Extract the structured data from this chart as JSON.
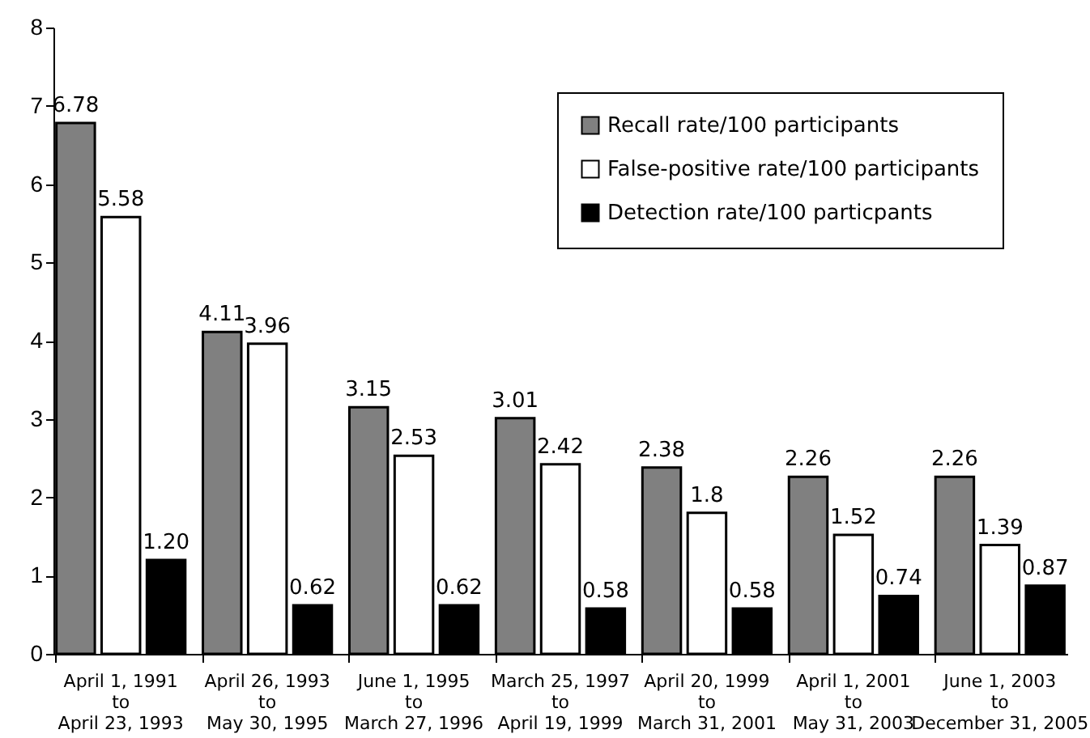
{
  "chart_data": {
    "type": "bar",
    "categories": [
      "April 1, 1991\nto\nApril 23, 1993",
      "April 26, 1993\nto\nMay 30, 1995",
      "June 1, 1995\nto\nMarch 27, 1996",
      "March 25, 1997\nto\nApril 19, 1999",
      "April 20, 1999\nto\nMarch 31, 2001",
      "April 1, 2001\nto\nMay 31, 2003",
      "June 1, 2003\nto\nDecember 31, 2005"
    ],
    "series": [
      {
        "name": "Recall rate/100 participants",
        "color": "#808080",
        "values": [
          6.78,
          4.11,
          3.15,
          3.01,
          2.38,
          2.26,
          2.26
        ],
        "value_labels": [
          "6.78",
          "4.11",
          "3.15",
          "3.01",
          "2.38",
          "2.26",
          "2.26"
        ]
      },
      {
        "name": "False-positive rate/100 participants",
        "color": "#ffffff",
        "values": [
          5.58,
          3.96,
          2.53,
          2.42,
          1.8,
          1.52,
          1.39
        ],
        "value_labels": [
          "5.58",
          "3.96",
          "2.53",
          "2.42",
          "1.8",
          "1.52",
          "1.39"
        ]
      },
      {
        "name": "Detection rate/100 particpants",
        "color": "#000000",
        "values": [
          1.2,
          0.62,
          0.62,
          0.58,
          0.58,
          0.74,
          0.87
        ],
        "value_labels": [
          "1.20",
          "0.62",
          "0.62",
          "0.58",
          "0.58",
          "0.74",
          "0.87"
        ]
      }
    ],
    "ylim": [
      0,
      8
    ],
    "yticks": [
      0,
      1,
      2,
      3,
      4,
      5,
      6,
      7,
      8
    ],
    "grid": false,
    "legend": "top right"
  }
}
